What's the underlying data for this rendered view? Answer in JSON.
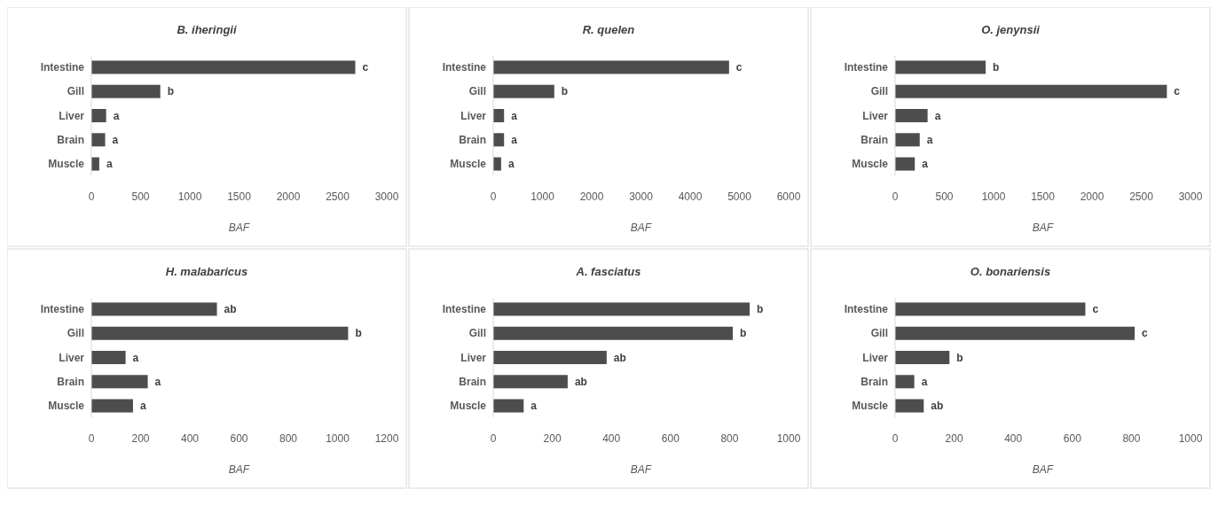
{
  "chart_data": [
    {
      "type": "bar",
      "orientation": "horizontal",
      "title": "B. iheringii",
      "xlabel": "BAF",
      "categories": [
        "Intestine",
        "Gill",
        "Liver",
        "Brain",
        "Muscle"
      ],
      "values": [
        2680,
        700,
        150,
        140,
        80
      ],
      "value_labels": [
        "c",
        "b",
        "a",
        "a",
        "a"
      ],
      "color": "#4d4d4d",
      "xlim": [
        0,
        3000
      ],
      "xticks": [
        0,
        500,
        1000,
        1500,
        2000,
        2500,
        3000
      ],
      "grid": false
    },
    {
      "type": "bar",
      "orientation": "horizontal",
      "title": "R. quelen",
      "xlabel": "BAF",
      "categories": [
        "Intestine",
        "Gill",
        "Liver",
        "Brain",
        "Muscle"
      ],
      "values": [
        4790,
        1240,
        220,
        220,
        160
      ],
      "value_labels": [
        "c",
        "b",
        "a",
        "a",
        "a"
      ],
      "color": "#4d4d4d",
      "xlim": [
        0,
        6000
      ],
      "xticks": [
        0,
        1000,
        2000,
        3000,
        4000,
        5000,
        6000
      ],
      "grid": false
    },
    {
      "type": "bar",
      "orientation": "horizontal",
      "title": "O. jenynsii",
      "xlabel": "BAF",
      "categories": [
        "Intestine",
        "Gill",
        "Liver",
        "Brain",
        "Muscle"
      ],
      "values": [
        920,
        2760,
        330,
        250,
        200
      ],
      "value_labels": [
        "b",
        "c",
        "a",
        "a",
        "a"
      ],
      "color": "#4d4d4d",
      "xlim": [
        0,
        3000
      ],
      "xticks": [
        0,
        500,
        1000,
        1500,
        2000,
        2500,
        3000
      ],
      "grid": false
    },
    {
      "type": "bar",
      "orientation": "horizontal",
      "title": "H. malabaricus",
      "xlabel": "BAF",
      "categories": [
        "Intestine",
        "Gill",
        "Liver",
        "Brain",
        "Muscle"
      ],
      "values": [
        510,
        1043,
        139,
        229,
        169
      ],
      "value_labels": [
        "ab",
        "b",
        "a",
        "a",
        "a"
      ],
      "color": "#4d4d4d",
      "xlim": [
        0,
        1200
      ],
      "xticks": [
        0,
        200,
        400,
        600,
        800,
        1000,
        1200
      ],
      "grid": false
    },
    {
      "type": "bar",
      "orientation": "horizontal",
      "title": "A. fasciatus",
      "xlabel": "BAF",
      "categories": [
        "Intestine",
        "Gill",
        "Liver",
        "Brain",
        "Muscle"
      ],
      "values": [
        868,
        811,
        384,
        252,
        103
      ],
      "value_labels": [
        "b",
        "b",
        "ab",
        "ab",
        "a"
      ],
      "color": "#4d4d4d",
      "xlim": [
        0,
        1000
      ],
      "xticks": [
        0,
        200,
        400,
        600,
        800,
        1000
      ],
      "grid": false
    },
    {
      "type": "bar",
      "orientation": "horizontal",
      "title": "O. bonariensis",
      "xlabel": "BAF",
      "categories": [
        "Intestine",
        "Gill",
        "Liver",
        "Brain",
        "Muscle"
      ],
      "values": [
        644,
        811,
        184,
        65,
        97
      ],
      "value_labels": [
        "c",
        "c",
        "b",
        "a",
        "ab"
      ],
      "color": "#4d4d4d",
      "xlim": [
        0,
        1000
      ],
      "xticks": [
        0,
        200,
        400,
        600,
        800,
        1000
      ],
      "grid": false
    }
  ]
}
